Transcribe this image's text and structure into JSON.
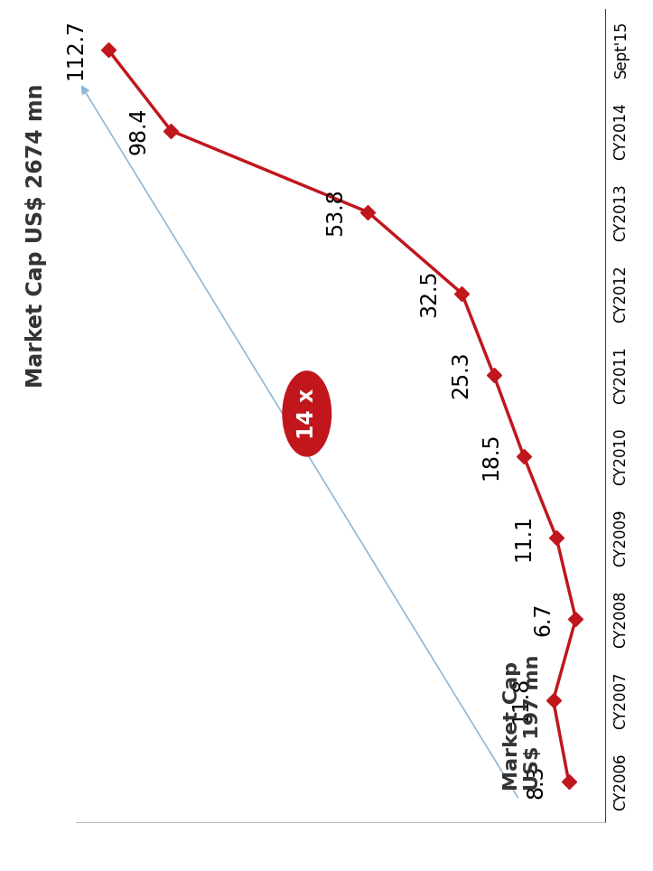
{
  "chart_data": {
    "type": "line",
    "categories": [
      "CY2006",
      "CY2007",
      "CY2008",
      "CY2009",
      "CY2010",
      "CY2011",
      "CY2012",
      "CY2013",
      "CY2014",
      "Sept'15"
    ],
    "values": [
      8.3,
      11.8,
      6.7,
      11.1,
      18.5,
      25.3,
      32.5,
      53.8,
      98.4,
      112.7
    ],
    "color": "#c0161c",
    "marker": "D",
    "line_style": "solid",
    "ylim": [
      0,
      120
    ],
    "yticks": [],
    "tick_labels": "x",
    "data_labels": true,
    "annotations": [
      "Market Cap US$ 2674 mn",
      "Market Cap\nUS$ 197 mn",
      "14 x"
    ]
  }
}
